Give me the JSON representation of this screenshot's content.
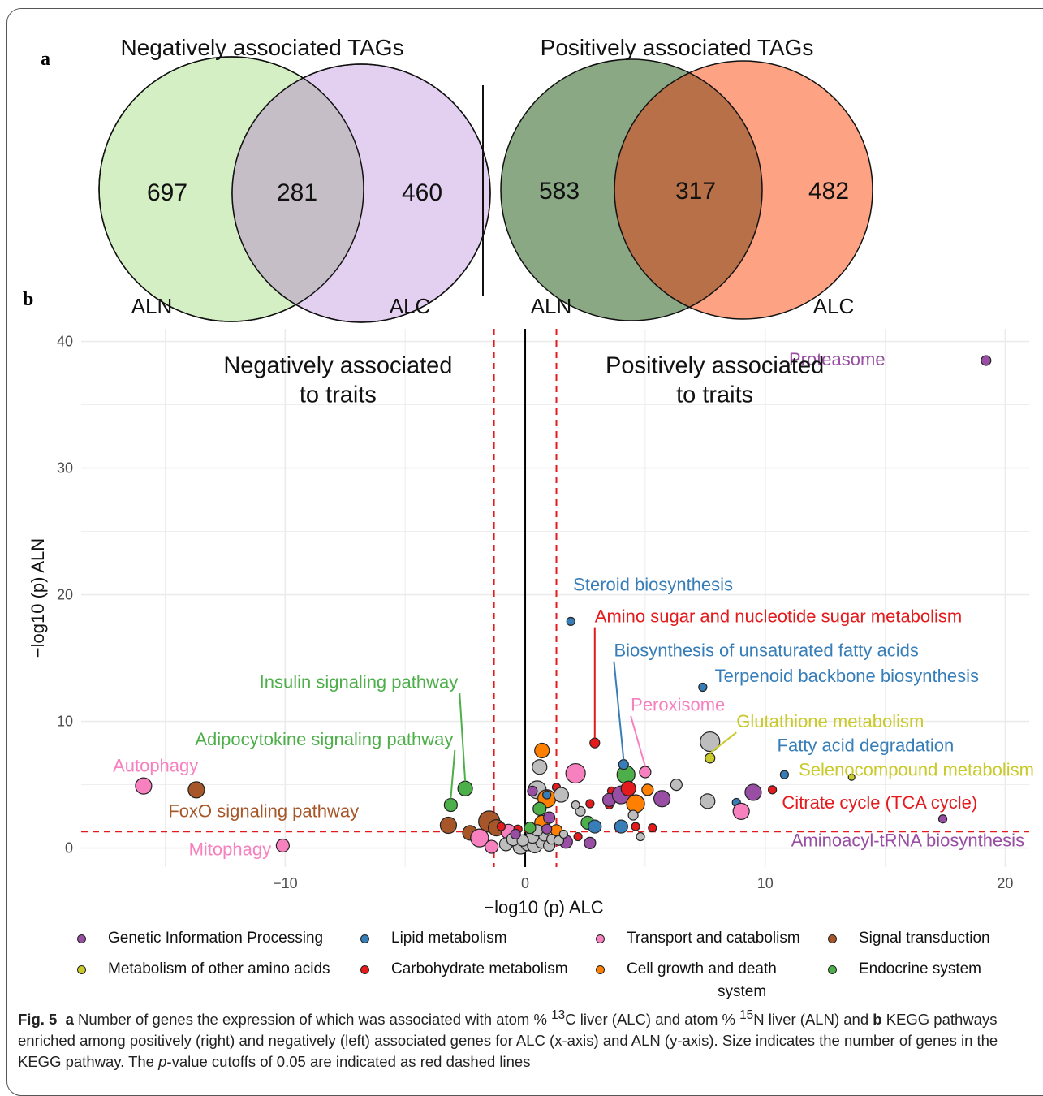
{
  "panels": {
    "a_label": "a",
    "b_label": "b"
  },
  "venn": [
    {
      "title": "Negatively associated TAGs",
      "left_set": "ALN",
      "right_set": "ALC",
      "left_only": "697",
      "overlap": "281",
      "right_only": "460",
      "left_color": "#d4efc4",
      "right_color": "#e3d0f1",
      "overlap_color": "#c5bec7"
    },
    {
      "title": "Positively associated TAGs",
      "left_set": "ALN",
      "right_set": "ALC",
      "left_only": "583",
      "overlap": "317",
      "right_only": "482",
      "left_color": "#8ba885",
      "right_color": "#fda384",
      "overlap_color": "#b87048"
    }
  ],
  "chart_data": {
    "type": "scatter",
    "xlabel": "−log10 (p) ALC",
    "ylabel": "−log10 (p) ALN",
    "xlim": [
      -18.5,
      21
    ],
    "ylim": [
      -1.5,
      41
    ],
    "xticks": [
      -10,
      0,
      10,
      20
    ],
    "xtick_labels": [
      "−10",
      "0",
      "10",
      "20"
    ],
    "yticks": [
      0,
      10,
      20,
      30,
      40
    ],
    "ytick_labels": [
      "0",
      "10",
      "20",
      "30",
      "40"
    ],
    "grid": true,
    "cutoff": 1.301,
    "annotations": [
      {
        "text": "Negatively associated",
        "x": -7.8,
        "y": 38.0
      },
      {
        "text": "to traits",
        "x": -7.8,
        "y": 35.7
      },
      {
        "text": "Positively associated",
        "x": 7.9,
        "y": 38.0
      },
      {
        "text": "to traits",
        "x": 7.9,
        "y": 35.7
      }
    ],
    "categories": [
      {
        "name": "Genetic Information Processing",
        "color": "#984ea3"
      },
      {
        "name": "Lipid metabolism",
        "color": "#377eb8"
      },
      {
        "name": "Transport and catabolism",
        "color": "#f781bf"
      },
      {
        "name": "Signal transduction",
        "color": "#a65628"
      },
      {
        "name": "Metabolism of other amino acids",
        "color": "#c9c92a"
      },
      {
        "name": "Carbohydrate metabolism",
        "color": "#e41a1c"
      },
      {
        "name": "Cell growth and death",
        "color": "#ff7f00"
      },
      {
        "name": "Endocrine system",
        "color": "#4daf4a"
      }
    ],
    "legend_system_word": "system",
    "labeled_points": [
      {
        "label": "Proteasome",
        "x": 19.2,
        "y": 38.5,
        "cat": 0,
        "size": 6,
        "lx": 15.0,
        "ly": 38.5,
        "anchor": "end",
        "lead": false
      },
      {
        "label": "Steroid biosynthesis",
        "x": 1.9,
        "y": 17.9,
        "cat": 1,
        "size": 5,
        "lx": 2.0,
        "ly": 20.7,
        "anchor": "start",
        "lead": false
      },
      {
        "label": "Amino sugar and nucleotide sugar metabolism",
        "x": 2.9,
        "y": 8.3,
        "cat": 5,
        "size": 6,
        "lx": 2.9,
        "ly": 18.2,
        "anchor": "start",
        "lead": true
      },
      {
        "label": "Biosynthesis of unsaturated fatty acids",
        "x": 4.1,
        "y": 6.6,
        "cat": 1,
        "size": 6,
        "lx": 3.7,
        "ly": 15.5,
        "anchor": "start",
        "lead": true
      },
      {
        "label": "Terpenoid backbone biosynthesis",
        "x": 7.4,
        "y": 12.7,
        "cat": 1,
        "size": 5,
        "lx": 7.9,
        "ly": 13.5,
        "anchor": "start",
        "lead": false
      },
      {
        "label": "Peroxisome",
        "x": 5.0,
        "y": 6.0,
        "cat": 2,
        "size": 7,
        "lx": 4.4,
        "ly": 11.2,
        "anchor": "start",
        "lead": true
      },
      {
        "label": "Glutathione metabolism",
        "x": 7.7,
        "y": 7.1,
        "cat": 4,
        "size": 6,
        "lx": 8.8,
        "ly": 9.9,
        "anchor": "start",
        "lead": true
      },
      {
        "label": "Fatty acid degradation",
        "x": 10.8,
        "y": 5.8,
        "cat": 1,
        "size": 5,
        "lx": 10.5,
        "ly": 8.0,
        "anchor": "start",
        "lead": false
      },
      {
        "label": "Selenocompound metabolism",
        "x": 13.6,
        "y": 5.6,
        "cat": 4,
        "size": 4,
        "lx": 11.4,
        "ly": 6.1,
        "anchor": "start",
        "lead": false
      },
      {
        "label": "Citrate cycle (TCA cycle)",
        "x": 10.3,
        "y": 4.6,
        "cat": 5,
        "size": 5,
        "lx": 10.7,
        "ly": 3.5,
        "anchor": "start",
        "lead": false
      },
      {
        "label": "Aminoacyl-tRNA biosynthesis",
        "x": 17.4,
        "y": 2.3,
        "cat": 0,
        "size": 5,
        "lx": 20.8,
        "ly": 0.5,
        "anchor": "end",
        "lead": false
      },
      {
        "label": "Insulin signaling pathway",
        "x": -2.5,
        "y": 4.7,
        "cat": 7,
        "size": 9,
        "lx": -2.8,
        "ly": 13.0,
        "anchor": "end",
        "lead": true
      },
      {
        "label": "Adipocytokine signaling pathway",
        "x": -3.1,
        "y": 3.4,
        "cat": 7,
        "size": 8,
        "lx": -3.0,
        "ly": 8.5,
        "anchor": "end",
        "lead": true
      },
      {
        "label": "Autophagy",
        "x": -15.9,
        "y": 4.9,
        "cat": 2,
        "size": 10,
        "lx": -15.4,
        "ly": 6.4,
        "anchor": "middle",
        "lead": false
      },
      {
        "label": "FoxO signaling pathway",
        "x": -13.7,
        "y": 4.6,
        "cat": 3,
        "size": 10,
        "lx": -10.9,
        "ly": 2.8,
        "anchor": "middle",
        "lead": false
      },
      {
        "label": "Mitophagy",
        "x": -10.1,
        "y": 0.2,
        "cat": 2,
        "size": 8,
        "lx": -12.3,
        "ly": -0.2,
        "anchor": "middle",
        "lead": false
      }
    ],
    "points": [
      {
        "x": 0.7,
        "y": 7.7,
        "cat": 6,
        "size": 9
      },
      {
        "x": 0.6,
        "y": 6.4,
        "cat": -1,
        "size": 9
      },
      {
        "x": 2.1,
        "y": 5.9,
        "cat": 2,
        "size": 12
      },
      {
        "x": 0.5,
        "y": 4.6,
        "cat": -1,
        "size": 11
      },
      {
        "x": 0.3,
        "y": 4.5,
        "cat": 0,
        "size": 6
      },
      {
        "x": 1.3,
        "y": 4.8,
        "cat": 5,
        "size": 5
      },
      {
        "x": 0.9,
        "y": 3.9,
        "cat": 6,
        "size": 11
      },
      {
        "x": 0.9,
        "y": 4.2,
        "cat": 1,
        "size": 5
      },
      {
        "x": 1.5,
        "y": 4.2,
        "cat": -1,
        "size": 9
      },
      {
        "x": 0.6,
        "y": 3.1,
        "cat": 7,
        "size": 8
      },
      {
        "x": 0.7,
        "y": 2.0,
        "cat": 6,
        "size": 9
      },
      {
        "x": 1.0,
        "y": 2.4,
        "cat": 0,
        "size": 7
      },
      {
        "x": 2.3,
        "y": 2.9,
        "cat": -1,
        "size": 6
      },
      {
        "x": 2.6,
        "y": 2.0,
        "cat": 7,
        "size": 8
      },
      {
        "x": 2.7,
        "y": 3.5,
        "cat": 5,
        "size": 5
      },
      {
        "x": 2.1,
        "y": 3.4,
        "cat": -1,
        "size": 5
      },
      {
        "x": 3.6,
        "y": 4.5,
        "cat": 5,
        "size": 5
      },
      {
        "x": 3.5,
        "y": 3.4,
        "cat": 5,
        "size": 5
      },
      {
        "x": 3.5,
        "y": 3.8,
        "cat": 0,
        "size": 8
      },
      {
        "x": 4.0,
        "y": 4.2,
        "cat": 0,
        "size": 11
      },
      {
        "x": 4.2,
        "y": 5.8,
        "cat": 7,
        "size": 11
      },
      {
        "x": 4.3,
        "y": 4.7,
        "cat": 5,
        "size": 9
      },
      {
        "x": 4.6,
        "y": 3.5,
        "cat": 6,
        "size": 11
      },
      {
        "x": 4.5,
        "y": 2.6,
        "cat": -1,
        "size": 6
      },
      {
        "x": 5.1,
        "y": 4.6,
        "cat": 6,
        "size": 7
      },
      {
        "x": 5.7,
        "y": 3.9,
        "cat": 0,
        "size": 10
      },
      {
        "x": 6.3,
        "y": 5.0,
        "cat": -1,
        "size": 7
      },
      {
        "x": 7.7,
        "y": 8.4,
        "cat": -1,
        "size": 12
      },
      {
        "x": 7.6,
        "y": 3.7,
        "cat": -1,
        "size": 9
      },
      {
        "x": 8.8,
        "y": 3.6,
        "cat": 1,
        "size": 5
      },
      {
        "x": 9.0,
        "y": 2.9,
        "cat": 2,
        "size": 10
      },
      {
        "x": 9.5,
        "y": 4.4,
        "cat": 0,
        "size": 10
      },
      {
        "x": 4.0,
        "y": 1.7,
        "cat": 1,
        "size": 8
      },
      {
        "x": 4.6,
        "y": 1.7,
        "cat": 5,
        "size": 5
      },
      {
        "x": 5.3,
        "y": 1.6,
        "cat": 5,
        "size": 5
      },
      {
        "x": 4.8,
        "y": 0.9,
        "cat": -1,
        "size": 5
      },
      {
        "x": 2.9,
        "y": 1.7,
        "cat": 1,
        "size": 8
      },
      {
        "x": 2.7,
        "y": 0.4,
        "cat": 0,
        "size": 7
      },
      {
        "x": 1.7,
        "y": 0.5,
        "cat": 0,
        "size": 8
      },
      {
        "x": 1.3,
        "y": 1.4,
        "cat": 6,
        "size": 7
      },
      {
        "x": 2.2,
        "y": 0.9,
        "cat": 5,
        "size": 5
      },
      {
        "x": -1.5,
        "y": 2.1,
        "cat": 3,
        "size": 13
      },
      {
        "x": -1.2,
        "y": 1.6,
        "cat": 3,
        "size": 10
      },
      {
        "x": -2.3,
        "y": 1.2,
        "cat": 3,
        "size": 9
      },
      {
        "x": -3.2,
        "y": 1.8,
        "cat": 3,
        "size": 10
      },
      {
        "x": -1.9,
        "y": 0.8,
        "cat": 2,
        "size": 11
      },
      {
        "x": -1.4,
        "y": 0.1,
        "cat": 2,
        "size": 8
      },
      {
        "x": -0.7,
        "y": 1.3,
        "cat": 2,
        "size": 9
      },
      {
        "x": -0.3,
        "y": 1.5,
        "cat": 5,
        "size": 5
      },
      {
        "x": -1.0,
        "y": 1.7,
        "cat": 5,
        "size": 5
      },
      {
        "x": -0.8,
        "y": 0.3,
        "cat": -1,
        "size": 8
      },
      {
        "x": -0.2,
        "y": 0.1,
        "cat": -1,
        "size": 9
      },
      {
        "x": 0.1,
        "y": 0.3,
        "cat": -1,
        "size": 8
      },
      {
        "x": 0.4,
        "y": 0.2,
        "cat": -1,
        "size": 9
      },
      {
        "x": 0.7,
        "y": 0.5,
        "cat": -1,
        "size": 8
      },
      {
        "x": 1.0,
        "y": 0.2,
        "cat": -1,
        "size": 7
      },
      {
        "x": 0.3,
        "y": 0.9,
        "cat": -1,
        "size": 8
      },
      {
        "x": 0.8,
        "y": 1.0,
        "cat": -1,
        "size": 7
      },
      {
        "x": -0.5,
        "y": 0.7,
        "cat": -1,
        "size": 8
      },
      {
        "x": 0.5,
        "y": 1.4,
        "cat": -1,
        "size": 7
      },
      {
        "x": 1.1,
        "y": 0.7,
        "cat": -1,
        "size": 6
      },
      {
        "x": 1.4,
        "y": 0.6,
        "cat": -1,
        "size": 6
      },
      {
        "x": 1.6,
        "y": 1.1,
        "cat": -1,
        "size": 5
      },
      {
        "x": -0.1,
        "y": 0.6,
        "cat": -1,
        "size": 7
      },
      {
        "x": 0.2,
        "y": 1.6,
        "cat": 7,
        "size": 7
      },
      {
        "x": 0.9,
        "y": 1.5,
        "cat": 0,
        "size": 6
      },
      {
        "x": -0.4,
        "y": 1.1,
        "cat": 0,
        "size": 6
      }
    ]
  },
  "legend": {
    "row1": [
      "Genetic Information Processing",
      "Lipid metabolism",
      "Transport and catabolism",
      "Signal transduction"
    ],
    "row2": [
      "Metabolism of other amino acids",
      "Carbohydrate metabolism",
      "Cell growth and death",
      "Endocrine system"
    ]
  },
  "caption": {
    "fig": "Fig. 5",
    "a": "a",
    "t1": " Number of genes the expression of which was associated with atom % ",
    "sup13": "13",
    "t2": "C liver (ALC) and atom % ",
    "sup15": "15",
    "t3": "N liver (ALN) and ",
    "b": "b",
    "t4": " KEGG pathways enriched among positively (right) and negatively (left) associated genes for ALC (x-axis) and ALN (y-axis). Size indicates the number of genes in the KEGG pathway. The ",
    "p": "p",
    "t5": "-value cutoffs of 0.05 are indicated as red dashed lines"
  }
}
